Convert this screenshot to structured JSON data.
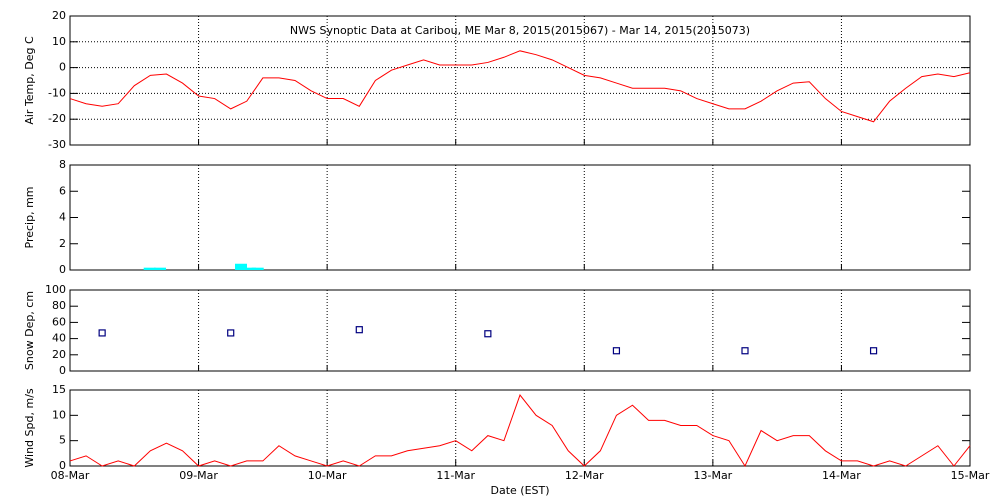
{
  "chart_data": [
    {
      "type": "line",
      "title": "NWS Synoptic Data at Caribou, ME   Mar  8, 2015(2015067) - Mar 14, 2015(2015073)",
      "y_label": "Air Temp, Deg C",
      "color": "#ff0000",
      "ygrid": true,
      "xlim": [
        0,
        7
      ],
      "ylim": [
        -30,
        20
      ],
      "yticks": [
        -30,
        -20,
        -10,
        0,
        10,
        20
      ],
      "x": [
        0,
        0.125,
        0.25,
        0.375,
        0.5,
        0.625,
        0.75,
        0.875,
        1,
        1.125,
        1.25,
        1.375,
        1.5,
        1.625,
        1.75,
        1.875,
        2,
        2.125,
        2.25,
        2.375,
        2.5,
        2.625,
        2.75,
        2.875,
        3,
        3.125,
        3.25,
        3.375,
        3.5,
        3.625,
        3.75,
        3.875,
        4,
        4.125,
        4.25,
        4.375,
        4.5,
        4.625,
        4.75,
        4.875,
        5,
        5.125,
        5.25,
        5.375,
        5.5,
        5.625,
        5.75,
        5.875,
        6,
        6.125,
        6.25,
        6.375,
        6.5,
        6.625,
        6.75,
        6.875,
        7
      ],
      "values": [
        -12,
        -14,
        -15,
        -14,
        -7,
        -3,
        -2.5,
        -6,
        -11,
        -12,
        -16,
        -13,
        -4,
        -4,
        -5,
        -9,
        -12,
        -12,
        -15,
        -5,
        -1,
        1,
        3,
        1,
        1,
        1,
        2,
        4,
        6.5,
        5,
        3,
        0,
        -3,
        -4,
        -6,
        -8,
        -8,
        -8,
        -9,
        -12,
        -14,
        -16,
        -16,
        -13,
        -9,
        -6,
        -5.5,
        -12,
        -17,
        -19,
        -21,
        -13,
        -8,
        -3.5,
        -2.5,
        -3.5,
        -2
      ]
    },
    {
      "type": "bar",
      "y_label": "Precip, mm",
      "color": "#00ffff",
      "ygrid": false,
      "xlim": [
        0,
        7
      ],
      "ylim": [
        0,
        8
      ],
      "yticks": [
        0,
        2,
        4,
        6,
        8
      ],
      "x": [
        0.62,
        0.7,
        1.33,
        1.4,
        1.46
      ],
      "values": [
        0.1,
        0.1,
        0.4,
        0.1,
        0.1
      ]
    },
    {
      "type": "scatter",
      "y_label": "Snow Dep, cm",
      "color": "#000080",
      "ygrid": false,
      "xlim": [
        0,
        7
      ],
      "ylim": [
        0,
        100
      ],
      "yticks": [
        0,
        20,
        40,
        60,
        80,
        100
      ],
      "x": [
        0.25,
        1.25,
        2.25,
        3.25,
        4.25,
        5.25,
        6.25
      ],
      "values": [
        47,
        47,
        51,
        46,
        25,
        25,
        25
      ]
    },
    {
      "type": "line",
      "y_label": "Wind Spd, m/s",
      "x_label": "Date (EST)",
      "color": "#ff0000",
      "ygrid": false,
      "xlim": [
        0,
        7
      ],
      "ylim": [
        0,
        15
      ],
      "yticks": [
        0,
        5,
        10,
        15
      ],
      "xticks": [
        {
          "value": 0,
          "label": "08-Mar"
        },
        {
          "value": 1,
          "label": "09-Mar"
        },
        {
          "value": 2,
          "label": "10-Mar"
        },
        {
          "value": 3,
          "label": "11-Mar"
        },
        {
          "value": 4,
          "label": "12-Mar"
        },
        {
          "value": 5,
          "label": "13-Mar"
        },
        {
          "value": 6,
          "label": "14-Mar"
        },
        {
          "value": 7,
          "label": "15-Mar"
        }
      ],
      "x": [
        0,
        0.125,
        0.25,
        0.375,
        0.5,
        0.625,
        0.75,
        0.875,
        1,
        1.125,
        1.25,
        1.375,
        1.5,
        1.625,
        1.75,
        1.875,
        2,
        2.125,
        2.25,
        2.375,
        2.5,
        2.625,
        2.75,
        2.875,
        3,
        3.125,
        3.25,
        3.375,
        3.5,
        3.625,
        3.75,
        3.875,
        4,
        4.125,
        4.25,
        4.375,
        4.5,
        4.625,
        4.75,
        4.875,
        5,
        5.125,
        5.25,
        5.375,
        5.5,
        5.625,
        5.75,
        5.875,
        6,
        6.125,
        6.25,
        6.375,
        6.5,
        6.625,
        6.75,
        6.875,
        7
      ],
      "values": [
        1,
        2,
        0,
        1,
        0,
        3,
        4.5,
        3,
        0,
        1,
        0,
        1,
        1,
        4,
        2,
        1,
        0,
        1,
        0,
        2,
        2,
        3,
        3.5,
        4,
        5,
        3,
        6,
        5,
        14,
        10,
        8,
        3,
        0,
        3,
        10,
        12,
        9,
        9,
        8,
        8,
        6,
        5,
        0,
        7,
        5,
        6,
        6,
        3,
        1,
        1,
        0,
        1,
        0,
        2,
        4,
        0,
        4
      ]
    }
  ]
}
